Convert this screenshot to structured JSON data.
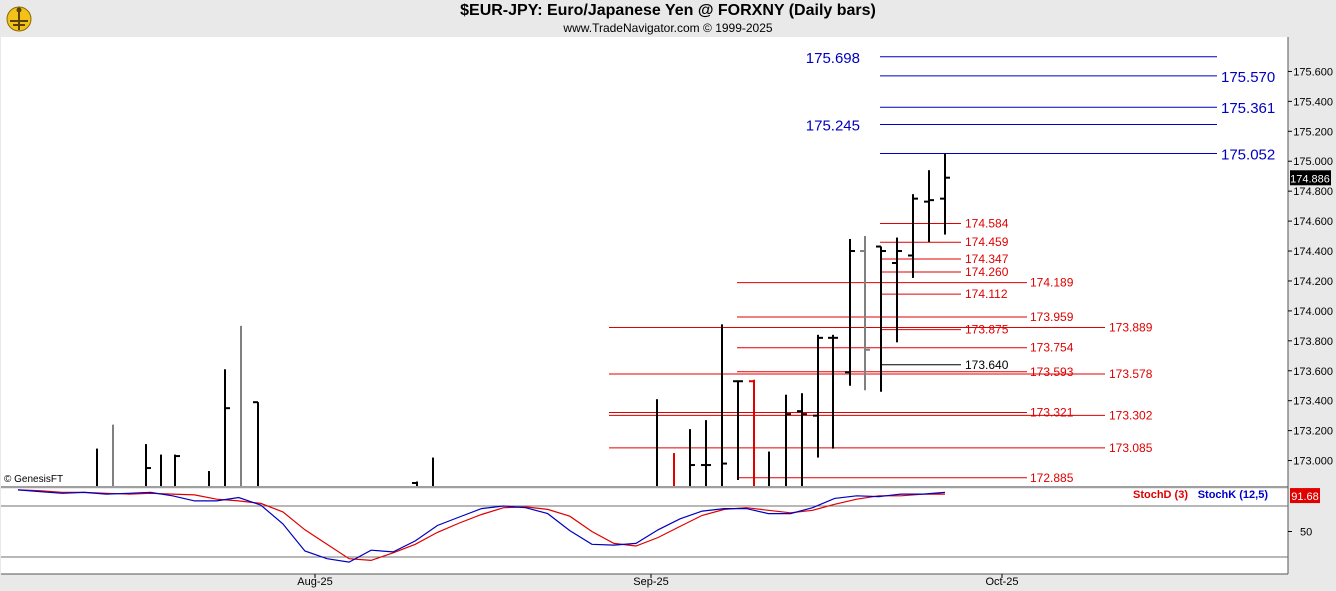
{
  "header": {
    "title": "$EUR-JPY:  Euro/Japanese Yen @ FORXNY  (Daily bars)",
    "subtitle": "www.TradeNavigator.com © 1999-2025"
  },
  "credit": "© GenesisFT",
  "colors": {
    "background": "#ffffff",
    "frame": "#e9e9e9",
    "bar": "#000000",
    "bar_gray": "#808080",
    "bar_red": "#e00000",
    "fib_blue": "#0000c0",
    "fib_red": "#e00000",
    "stoch_d": "#e00000",
    "stoch_k": "#0000d0"
  },
  "chart_data": [
    {
      "type": "ohlc",
      "ylim": [
        172.83,
        175.83
      ],
      "y_ticks": [
        "173.000",
        "173.200",
        "173.400",
        "173.600",
        "173.800",
        "174.000",
        "174.200",
        "174.400",
        "174.600",
        "174.800",
        "175.000",
        "175.200",
        "175.400",
        "175.600"
      ],
      "x_tick_labels": [
        "Aug-25",
        "Sep-25",
        "Oct-25"
      ],
      "last_price_label": "174.886",
      "bars": [
        {
          "o": 172.83,
          "h": 173.08,
          "l": 172.83,
          "c": 172.83,
          "color": "black"
        },
        {
          "o": 172.83,
          "h": 173.24,
          "l": 172.83,
          "c": 172.83,
          "color": "gray"
        },
        {
          "o": 172.83,
          "h": 173.11,
          "l": 172.83,
          "c": 172.95,
          "color": "black"
        },
        {
          "o": 172.83,
          "h": 173.04,
          "l": 172.83,
          "c": 172.83,
          "color": "black"
        },
        {
          "o": 172.83,
          "h": 173.04,
          "l": 172.83,
          "c": 173.03,
          "color": "black"
        },
        {
          "o": 172.83,
          "h": 172.93,
          "l": 172.83,
          "c": 172.83,
          "color": "black"
        },
        {
          "o": 172.83,
          "h": 173.61,
          "l": 172.83,
          "c": 173.35,
          "color": "black"
        },
        {
          "o": 172.83,
          "h": 173.9,
          "l": 172.83,
          "c": 172.83,
          "color": "gray"
        },
        {
          "o": 173.39,
          "h": 173.39,
          "l": 172.83,
          "c": 172.83,
          "color": "black"
        },
        {
          "o": 172.85,
          "h": 172.86,
          "l": 172.83,
          "c": 172.83,
          "color": "black"
        },
        {
          "o": 172.83,
          "h": 173.02,
          "l": 172.83,
          "c": 172.83,
          "color": "black"
        },
        {
          "o": 172.83,
          "h": 173.41,
          "l": 172.83,
          "c": 172.83,
          "color": "black"
        },
        {
          "o": 172.83,
          "h": 173.05,
          "l": 172.83,
          "c": 172.83,
          "color": "red"
        },
        {
          "o": 172.83,
          "h": 173.21,
          "l": 172.83,
          "c": 172.97,
          "color": "black"
        },
        {
          "o": 172.97,
          "h": 173.27,
          "l": 172.83,
          "c": 172.97,
          "color": "black"
        },
        {
          "o": 172.83,
          "h": 173.91,
          "l": 172.83,
          "c": 172.98,
          "color": "black"
        },
        {
          "o": 173.53,
          "h": 173.53,
          "l": 172.87,
          "c": 173.53,
          "color": "black"
        },
        {
          "o": 173.53,
          "h": 173.54,
          "l": 172.83,
          "c": 172.83,
          "color": "red"
        },
        {
          "o": 172.83,
          "h": 173.06,
          "l": 172.83,
          "c": 172.83,
          "color": "black"
        },
        {
          "o": 172.83,
          "h": 173.44,
          "l": 172.83,
          "c": 173.31,
          "color": "black"
        },
        {
          "o": 173.33,
          "h": 173.45,
          "l": 172.83,
          "c": 173.31,
          "color": "black"
        },
        {
          "o": 173.3,
          "h": 173.84,
          "l": 173.02,
          "c": 173.82,
          "color": "black"
        },
        {
          "o": 173.82,
          "h": 173.84,
          "l": 173.08,
          "c": 173.82,
          "color": "black"
        },
        {
          "o": 173.59,
          "h": 174.48,
          "l": 173.5,
          "c": 174.4,
          "color": "black"
        },
        {
          "o": 174.4,
          "h": 174.5,
          "l": 173.47,
          "c": 173.74,
          "color": "gray"
        },
        {
          "o": 174.43,
          "h": 174.43,
          "l": 173.46,
          "c": 174.4,
          "color": "black"
        },
        {
          "o": 174.32,
          "h": 174.49,
          "l": 173.79,
          "c": 174.4,
          "color": "black"
        },
        {
          "o": 174.37,
          "h": 174.78,
          "l": 174.22,
          "c": 174.75,
          "color": "black"
        },
        {
          "o": 174.73,
          "h": 174.94,
          "l": 174.46,
          "c": 174.74,
          "color": "black"
        },
        {
          "o": 174.75,
          "h": 175.05,
          "l": 174.51,
          "c": 174.89,
          "color": "black"
        }
      ],
      "fib_levels": [
        {
          "value": "175.698",
          "color": "blue",
          "label_side": "left"
        },
        {
          "value": "175.570",
          "color": "blue",
          "label_side": "right"
        },
        {
          "value": "175.361",
          "color": "blue",
          "label_side": "right"
        },
        {
          "value": "175.245",
          "color": "blue",
          "label_side": "left"
        },
        {
          "value": "175.052",
          "color": "blue",
          "label_side": "right"
        },
        {
          "value": "174.584",
          "color": "red",
          "label_side": "right"
        },
        {
          "value": "174.459",
          "color": "red",
          "label_side": "right"
        },
        {
          "value": "174.347",
          "color": "red",
          "label_side": "right"
        },
        {
          "value": "174.260",
          "color": "red",
          "label_side": "right"
        },
        {
          "value": "174.189",
          "color": "red",
          "label_side": "right"
        },
        {
          "value": "174.112",
          "color": "red",
          "label_side": "right"
        },
        {
          "value": "173.959",
          "color": "red",
          "label_side": "right"
        },
        {
          "value": "173.889",
          "color": "red",
          "label_side": "right"
        },
        {
          "value": "173.875",
          "color": "red",
          "label_side": "right"
        },
        {
          "value": "173.754",
          "color": "red",
          "label_side": "right"
        },
        {
          "value": "173.640",
          "color": "black",
          "label_side": "right"
        },
        {
          "value": "173.593",
          "color": "red",
          "label_side": "right"
        },
        {
          "value": "173.578",
          "color": "red",
          "label_side": "right"
        },
        {
          "value": "173.321",
          "color": "red",
          "label_side": "right"
        },
        {
          "value": "173.302",
          "color": "red",
          "label_side": "right"
        },
        {
          "value": "173.085",
          "color": "red",
          "label_side": "right"
        },
        {
          "value": "172.885",
          "color": "red",
          "label_side": "right"
        }
      ]
    },
    {
      "type": "line",
      "ylim": [
        0,
        100
      ],
      "y_ticks": [
        "50"
      ],
      "last_value_label": "91.68",
      "series": [
        {
          "name": "StochD (3)",
          "color": "red",
          "values": [
            99,
            98,
            96,
            96,
            95,
            94,
            95,
            94,
            93,
            88,
            86,
            83,
            73,
            52,
            35,
            18,
            16,
            25,
            35,
            49,
            60,
            70,
            78,
            79,
            76,
            68,
            50,
            36,
            33,
            43,
            56,
            69,
            76,
            78,
            75,
            72,
            75,
            82,
            88,
            92,
            92,
            94,
            94
          ]
        },
        {
          "name": "StochK (12,5)",
          "color": "blue",
          "values": [
            99,
            97,
            95,
            96,
            94,
            95,
            96,
            92,
            86,
            86,
            90,
            81,
            59,
            27,
            18,
            14,
            28,
            26,
            39,
            57,
            67,
            77,
            80,
            78,
            71,
            51,
            35,
            34,
            36,
            52,
            65,
            74,
            77,
            77,
            71,
            71,
            78,
            89,
            92,
            91,
            94,
            94,
            96
          ]
        }
      ]
    }
  ]
}
